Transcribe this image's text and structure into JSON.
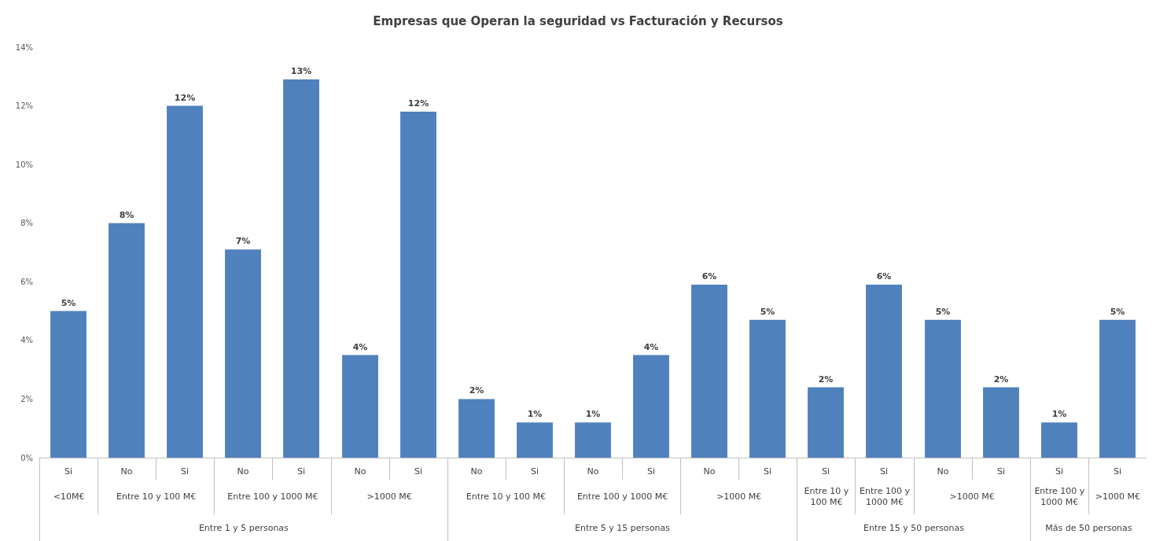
{
  "chart_data": [
    {
      "type": "bar",
      "categories": [
        "Si"
      ],
      "values": [
        5
      ],
      "value_labels": [
        "5%"
      ],
      "xlabel": "<10M€",
      "annotations": [
        "Entre 1 y 5 personas"
      ],
      "color": "#4f81bd",
      "ylim": [
        0,
        14
      ],
      "yticks": [
        {
          "value": 0,
          "label": "0%"
        },
        {
          "value": 2,
          "label": "2%"
        },
        {
          "value": 4,
          "label": "4%"
        },
        {
          "value": 6,
          "label": "6%"
        },
        {
          "value": 8,
          "label": "8%"
        },
        {
          "value": 10,
          "label": "10%"
        },
        {
          "value": 12,
          "label": "12%"
        },
        {
          "value": 14,
          "label": "14%"
        }
      ]
    },
    {
      "type": "bar",
      "categories": [
        "No",
        "Si"
      ],
      "values": [
        8,
        12
      ],
      "value_labels": [
        "8%",
        "12%"
      ],
      "xlabel": "Entre 10 y 100 M€",
      "color": "#4f81bd",
      "ylim": [
        0,
        14
      ],
      "tick_labels": "x"
    },
    {
      "type": "bar",
      "categories": [
        "No",
        "Si"
      ],
      "values": [
        7.1,
        12.9
      ],
      "value_labels": [
        "7%",
        "13%"
      ],
      "xlabel": "Entre 100 y 1000 M€",
      "color": "#4f81bd",
      "ylim": [
        0,
        14
      ],
      "tick_labels": "x"
    },
    {
      "type": "bar",
      "categories": [
        "No",
        "Si"
      ],
      "values": [
        3.5,
        11.8
      ],
      "value_labels": [
        "4%",
        "12%"
      ],
      "xlabel": ">1000 M€",
      "color": "#4f81bd",
      "ylim": [
        0,
        14
      ],
      "tick_labels": "x"
    },
    {
      "type": "bar",
      "categories": [
        "No",
        "Si"
      ],
      "values": [
        2,
        1.2
      ],
      "value_labels": [
        "2%",
        "1%"
      ],
      "xlabel": "Entre 10 y 100 M€",
      "annotations": [
        "Entre 5 y 15 personas"
      ],
      "color": "#4f81bd",
      "ylim": [
        0,
        14
      ],
      "tick_labels": "x"
    },
    {
      "type": "bar",
      "title": "Empresas que Operan la seguridad vs Facturación y Recursos",
      "categories": [
        "No",
        "Si"
      ],
      "values": [
        1.2,
        3.5
      ],
      "value_labels": [
        "1%",
        "4%"
      ],
      "xlabel": "Entre 100 y 1000 M€",
      "color": "#4f81bd",
      "ylim": [
        0,
        14
      ],
      "tick_labels": "x"
    },
    {
      "type": "bar",
      "categories": [
        "No",
        "Si"
      ],
      "values": [
        5.9,
        4.7
      ],
      "value_labels": [
        "6%",
        "5%"
      ],
      "xlabel": ">1000 M€",
      "color": "#4f81bd",
      "ylim": [
        0,
        14
      ],
      "tick_labels": "x"
    },
    {
      "type": "bar",
      "categories": [
        "Si"
      ],
      "values": [
        2.4
      ],
      "value_labels": [
        "2%"
      ],
      "xlabel": "Entre 10 y 100 M€",
      "annotations": [
        "Entre 15 y 50 personas"
      ],
      "color": "#4f81bd",
      "ylim": [
        0,
        14
      ],
      "tick_labels": "x"
    },
    {
      "type": "bar",
      "categories": [
        "Si"
      ],
      "values": [
        5.9
      ],
      "value_labels": [
        "6%"
      ],
      "xlabel": "Entre 100 y 1000 M€",
      "color": "#4f81bd",
      "ylim": [
        0,
        14
      ],
      "tick_labels": "x"
    },
    {
      "type": "bar",
      "categories": [
        "No",
        "Si"
      ],
      "values": [
        4.7,
        2.4
      ],
      "value_labels": [
        "5%",
        "2%"
      ],
      "xlabel": ">1000 M€",
      "color": "#4f81bd",
      "ylim": [
        0,
        14
      ],
      "tick_labels": "x"
    },
    {
      "type": "bar",
      "categories": [
        "Si"
      ],
      "values": [
        1.2
      ],
      "value_labels": [
        "1%"
      ],
      "xlabel": "Entre 100 y 1000 M€",
      "annotations": [
        "Más de 50 personas"
      ],
      "color": "#4f81bd",
      "ylim": [
        0,
        14
      ],
      "tick_labels": "x"
    },
    {
      "type": "bar",
      "categories": [
        "Si"
      ],
      "values": [
        4.7
      ],
      "value_labels": [
        "5%"
      ],
      "xlabel": ">1000 M€",
      "color": "#4f81bd",
      "ylim": [
        0,
        14
      ],
      "tick_labels": "x"
    }
  ]
}
